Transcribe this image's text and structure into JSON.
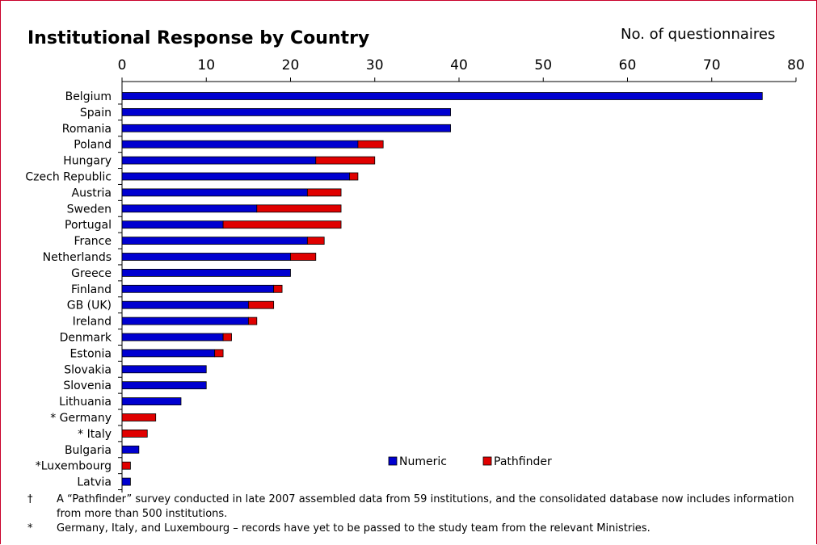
{
  "chart_data": {
    "type": "bar",
    "orientation": "horizontal",
    "stacked": true,
    "title": "Institutional Response by Country",
    "units_label": "No. of questionnaires",
    "xlim": [
      0,
      80
    ],
    "xticks": [
      0,
      10,
      20,
      30,
      40,
      50,
      60,
      70,
      80
    ],
    "axis_position": "top",
    "grid": false,
    "legend_position": "bottom-right",
    "categories": [
      "Belgium",
      "Spain",
      "Romania",
      "Poland",
      "Hungary",
      "Czech Republic",
      "Austria",
      "Sweden",
      "Portugal",
      "France",
      "Netherlands",
      "Greece",
      "Finland",
      "GB (UK)",
      "Ireland",
      "Denmark",
      "Estonia",
      "Slovakia",
      "Slovenia",
      "Lithuania",
      "* Germany",
      "* Italy",
      "Bulgaria",
      "*Luxembourg",
      "Latvia"
    ],
    "series": [
      {
        "name": "Numeric",
        "color": "#0000d0",
        "values": [
          76,
          39,
          39,
          28,
          23,
          27,
          22,
          16,
          12,
          22,
          20,
          20,
          18,
          15,
          15,
          12,
          11,
          10,
          10,
          7,
          0,
          0,
          2,
          0,
          1
        ]
      },
      {
        "name": "Pathfinder",
        "color": "#e00000",
        "values": [
          0,
          0,
          0,
          3,
          7,
          1,
          4,
          10,
          14,
          2,
          3,
          0,
          1,
          3,
          1,
          1,
          1,
          0,
          0,
          0,
          4,
          3,
          0,
          1,
          0
        ]
      }
    ]
  },
  "footnotes": [
    {
      "mark": "†",
      "text": "A “Pathfinder” survey conducted in late 2007 assembled data from 59 institutions, and the consolidated database now includes information from more than 500 institutions."
    },
    {
      "mark": "*",
      "text": "Germany, Italy, and Luxembourg – records have yet to be passed to the study team from the relevant Ministries."
    }
  ]
}
